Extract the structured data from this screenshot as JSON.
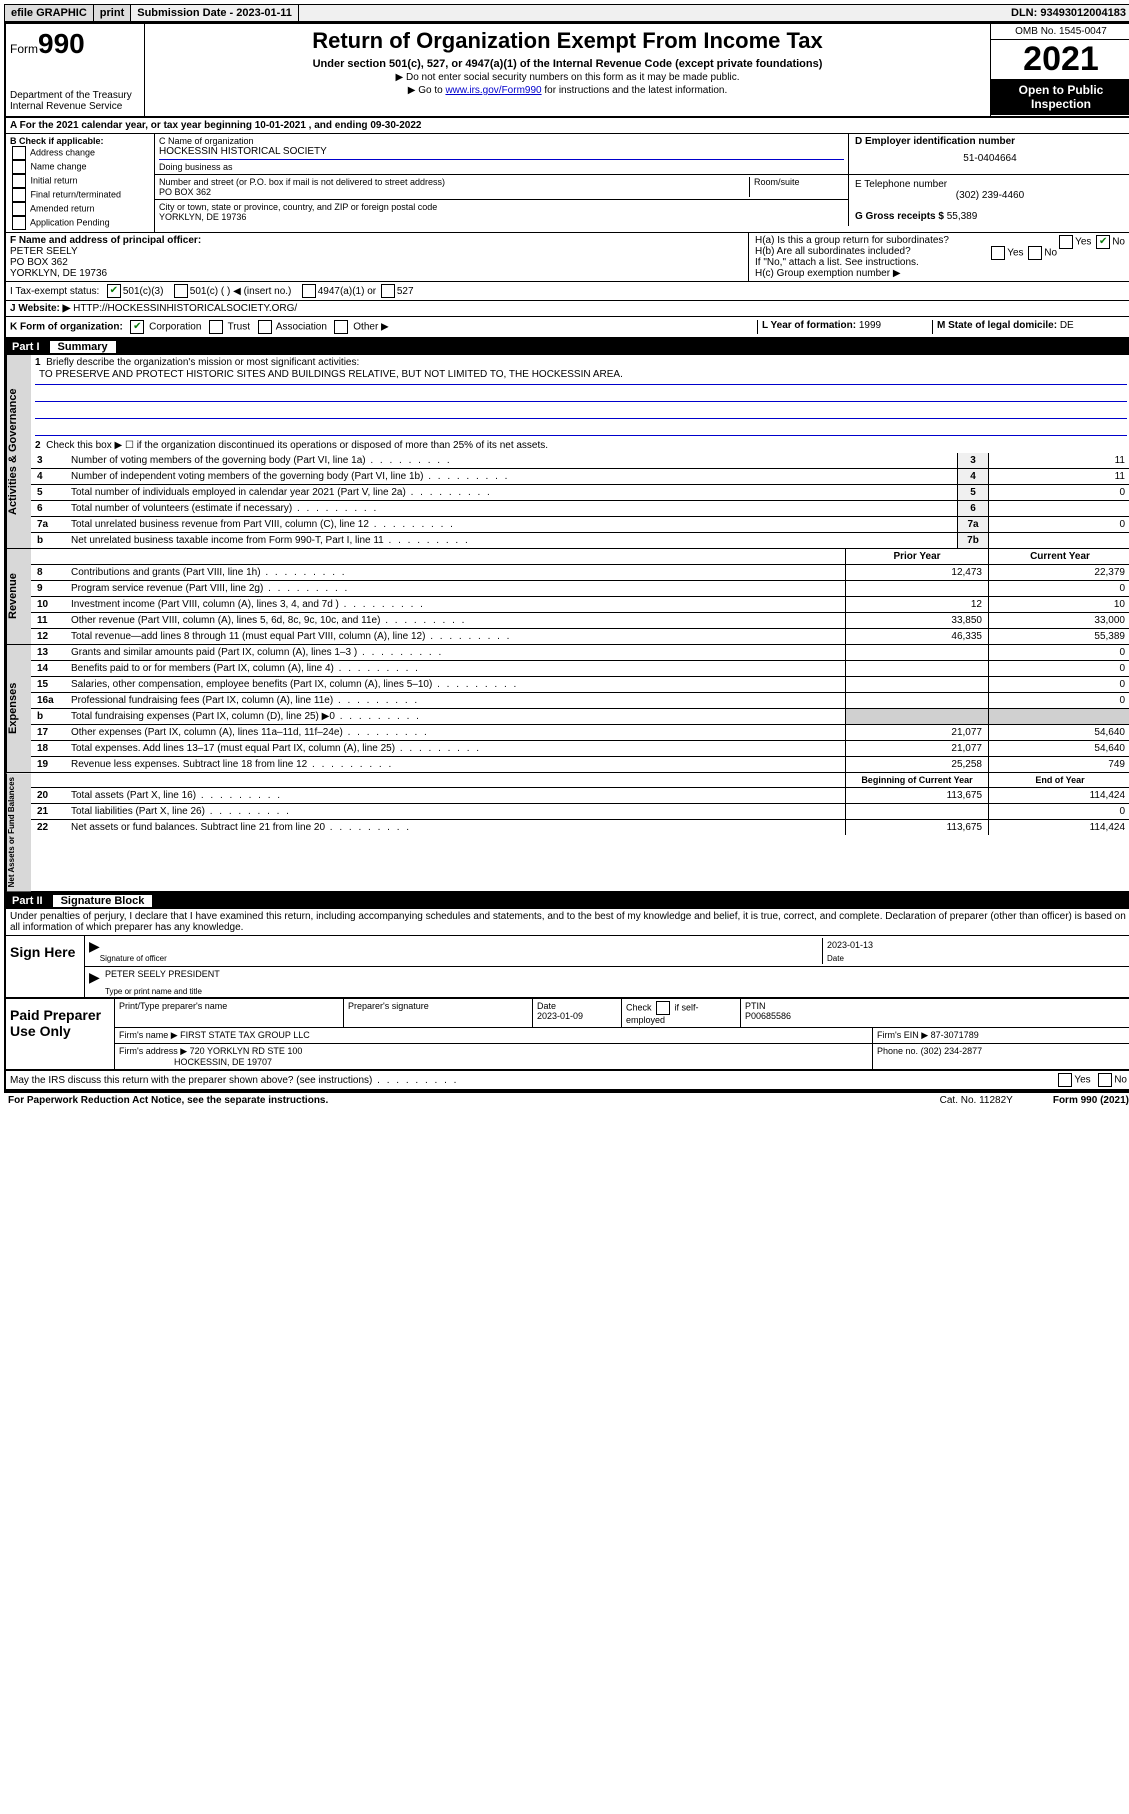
{
  "topbar": {
    "efile": "efile GRAPHIC",
    "print": "print",
    "sub_label": "Submission Date - 2023-01-11",
    "dln": "DLN: 93493012004183"
  },
  "header": {
    "form_prefix": "Form",
    "form_no": "990",
    "dept": "Department of the Treasury",
    "irs": "Internal Revenue Service",
    "title": "Return of Organization Exempt From Income Tax",
    "subtitle": "Under section 501(c), 527, or 4947(a)(1) of the Internal Revenue Code (except private foundations)",
    "note1": "▶ Do not enter social security numbers on this form as it may be made public.",
    "note2_pre": "▶ Go to ",
    "note2_link": "www.irs.gov/Form990",
    "note2_post": " for instructions and the latest information.",
    "omb": "OMB No. 1545-0047",
    "year": "2021",
    "open": "Open to Public Inspection"
  },
  "rowA": {
    "text": "A For the 2021 calendar year, or tax year beginning 10-01-2021   , and ending 09-30-2022"
  },
  "B": {
    "label": "B Check if applicable:",
    "items": [
      "Address change",
      "Name change",
      "Initial return",
      "Final return/terminated",
      "Amended return",
      "Application Pending"
    ]
  },
  "C": {
    "name_label": "C Name of organization",
    "name": "HOCKESSIN HISTORICAL SOCIETY",
    "dba_label": "Doing business as",
    "addr_label": "Number and street (or P.O. box if mail is not delivered to street address)",
    "room_label": "Room/suite",
    "addr": "PO BOX 362",
    "city_label": "City or town, state or province, country, and ZIP or foreign postal code",
    "city": "YORKLYN, DE  19736"
  },
  "D": {
    "label": "D Employer identification number",
    "value": "51-0404664"
  },
  "E": {
    "label": "E Telephone number",
    "value": "(302) 239-4460"
  },
  "G": {
    "label": "G Gross receipts $",
    "value": "55,389"
  },
  "F": {
    "label": "F Name and address of principal officer:",
    "name": "PETER SEELY",
    "addr1": "PO BOX 362",
    "addr2": "YORKLYN, DE  19736"
  },
  "H": {
    "a": "H(a)  Is this a group return for subordinates?",
    "a_no": "No",
    "b": "H(b)  Are all subordinates included?",
    "b_note": "If \"No,\" attach a list. See instructions.",
    "c": "H(c)  Group exemption number ▶",
    "yes": "Yes",
    "no": "No"
  },
  "I": {
    "label": "I   Tax-exempt status:",
    "o1": "501(c)(3)",
    "o2": "501(c) (  ) ◀ (insert no.)",
    "o3": "4947(a)(1) or",
    "o4": "527"
  },
  "J": {
    "label": "J   Website: ▶",
    "value": "HTTP://HOCKESSINHISTORICALSOCIETY.ORG/"
  },
  "K": {
    "label": "K Form of organization:",
    "o1": "Corporation",
    "o2": "Trust",
    "o3": "Association",
    "o4": "Other ▶"
  },
  "L": {
    "label": "L Year of formation:",
    "value": "1999"
  },
  "M": {
    "label": "M State of legal domicile:",
    "value": "DE"
  },
  "partI": {
    "num": "Part I",
    "title": "Summary"
  },
  "summary": {
    "l1_label": "Briefly describe the organization's mission or most significant activities:",
    "l1_val": "TO PRESERVE AND PROTECT HISTORIC SITES AND BUILDINGS RELATIVE, BUT NOT LIMITED TO, THE HOCKESSIN AREA.",
    "l2": "Check this box ▶ ☐  if the organization discontinued its operations or disposed of more than 25% of its net assets.",
    "rows_gov": [
      {
        "n": "3",
        "t": "Number of voting members of the governing body (Part VI, line 1a)",
        "b": "3",
        "v": "11"
      },
      {
        "n": "4",
        "t": "Number of independent voting members of the governing body (Part VI, line 1b)",
        "b": "4",
        "v": "11"
      },
      {
        "n": "5",
        "t": "Total number of individuals employed in calendar year 2021 (Part V, line 2a)",
        "b": "5",
        "v": "0"
      },
      {
        "n": "6",
        "t": "Total number of volunteers (estimate if necessary)",
        "b": "6",
        "v": ""
      },
      {
        "n": "7a",
        "t": "Total unrelated business revenue from Part VIII, column (C), line 12",
        "b": "7a",
        "v": "0"
      },
      {
        "n": "b",
        "t": "Net unrelated business taxable income from Form 990-T, Part I, line 11",
        "b": "7b",
        "v": ""
      }
    ],
    "col_prior": "Prior Year",
    "col_curr": "Current Year",
    "rev": [
      {
        "n": "8",
        "t": "Contributions and grants (Part VIII, line 1h)",
        "p": "12,473",
        "c": "22,379"
      },
      {
        "n": "9",
        "t": "Program service revenue (Part VIII, line 2g)",
        "p": "",
        "c": "0"
      },
      {
        "n": "10",
        "t": "Investment income (Part VIII, column (A), lines 3, 4, and 7d )",
        "p": "12",
        "c": "10"
      },
      {
        "n": "11",
        "t": "Other revenue (Part VIII, column (A), lines 5, 6d, 8c, 9c, 10c, and 11e)",
        "p": "33,850",
        "c": "33,000"
      },
      {
        "n": "12",
        "t": "Total revenue—add lines 8 through 11 (must equal Part VIII, column (A), line 12)",
        "p": "46,335",
        "c": "55,389"
      }
    ],
    "exp": [
      {
        "n": "13",
        "t": "Grants and similar amounts paid (Part IX, column (A), lines 1–3 )",
        "p": "",
        "c": "0"
      },
      {
        "n": "14",
        "t": "Benefits paid to or for members (Part IX, column (A), line 4)",
        "p": "",
        "c": "0"
      },
      {
        "n": "15",
        "t": "Salaries, other compensation, employee benefits (Part IX, column (A), lines 5–10)",
        "p": "",
        "c": "0"
      },
      {
        "n": "16a",
        "t": "Professional fundraising fees (Part IX, column (A), line 11e)",
        "p": "",
        "c": "0"
      },
      {
        "n": "b",
        "t": "Total fundraising expenses (Part IX, column (D), line 25) ▶0",
        "p": "shade",
        "c": "shade"
      },
      {
        "n": "17",
        "t": "Other expenses (Part IX, column (A), lines 11a–11d, 11f–24e)",
        "p": "21,077",
        "c": "54,640"
      },
      {
        "n": "18",
        "t": "Total expenses. Add lines 13–17 (must equal Part IX, column (A), line 25)",
        "p": "21,077",
        "c": "54,640"
      },
      {
        "n": "19",
        "t": "Revenue less expenses. Subtract line 18 from line 12",
        "p": "25,258",
        "c": "749"
      }
    ],
    "col_begin": "Beginning of Current Year",
    "col_end": "End of Year",
    "net": [
      {
        "n": "20",
        "t": "Total assets (Part X, line 16)",
        "p": "113,675",
        "c": "114,424"
      },
      {
        "n": "21",
        "t": "Total liabilities (Part X, line 26)",
        "p": "",
        "c": "0"
      },
      {
        "n": "22",
        "t": "Net assets or fund balances. Subtract line 21 from line 20",
        "p": "113,675",
        "c": "114,424"
      }
    ]
  },
  "vlabels": {
    "gov": "Activities & Governance",
    "rev": "Revenue",
    "exp": "Expenses",
    "net": "Net Assets or Fund Balances"
  },
  "partII": {
    "num": "Part II",
    "title": "Signature Block"
  },
  "sig": {
    "penalty": "Under penalties of perjury, I declare that I have examined this return, including accompanying schedules and statements, and to the best of my knowledge and belief, it is true, correct, and complete. Declaration of preparer (other than officer) is based on all information of which preparer has any knowledge.",
    "sign_here": "Sign Here",
    "sig_officer": "Signature of officer",
    "date_label": "Date",
    "date": "2023-01-13",
    "name": "PETER SEELY PRESIDENT",
    "name_label": "Type or print name and title"
  },
  "prep": {
    "label": "Paid Preparer Use Only",
    "h1": "Print/Type preparer's name",
    "h2": "Preparer's signature",
    "h3": "Date",
    "date": "2023-01-09",
    "h4_a": "Check",
    "h4_b": "if self-employed",
    "h5": "PTIN",
    "ptin": "P00685586",
    "firm_name_l": "Firm's name    ▶",
    "firm_name": "FIRST STATE TAX GROUP LLC",
    "firm_ein_l": "Firm's EIN ▶",
    "firm_ein": "87-3071789",
    "firm_addr_l": "Firm's address ▶",
    "firm_addr1": "720 YORKLYN RD STE 100",
    "firm_addr2": "HOCKESSIN, DE  19707",
    "phone_l": "Phone no.",
    "phone": "(302) 234-2877"
  },
  "may": {
    "q": "May the IRS discuss this return with the preparer shown above? (see instructions)",
    "yes": "Yes",
    "no": "No"
  },
  "footer": {
    "l": "For Paperwork Reduction Act Notice, see the separate instructions.",
    "m": "Cat. No. 11282Y",
    "r": "Form 990 (2021)"
  }
}
